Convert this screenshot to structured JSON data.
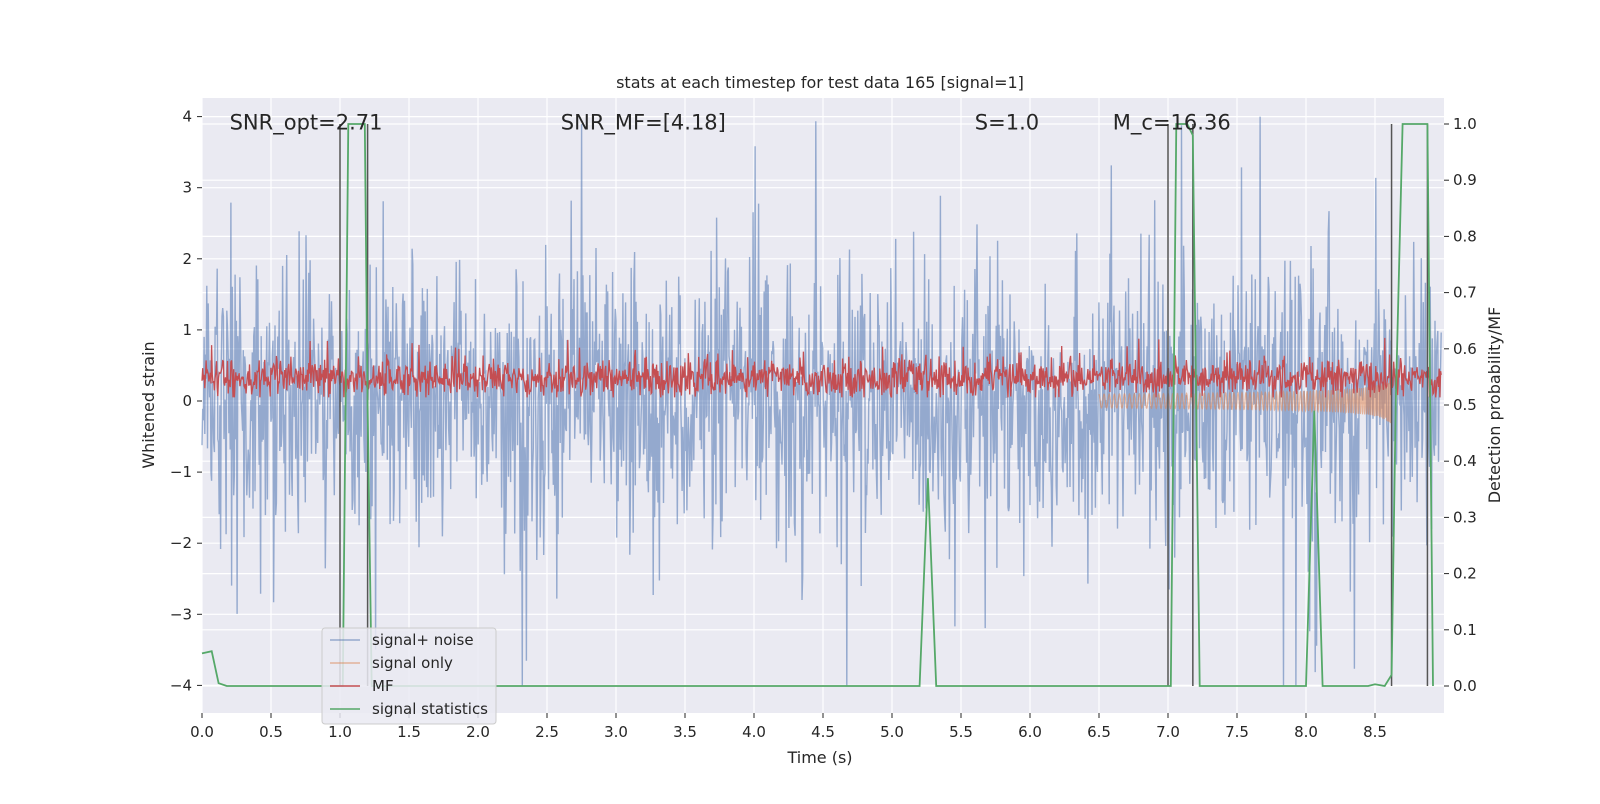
{
  "chart_data": {
    "type": "line",
    "title": "stats at each timestep for test data 165 [signal=1]",
    "xlabel": "Time (s)",
    "ylabel": "Whitened strain",
    "y2label": "Detection probability/MF",
    "xlim": [
      0.0,
      9.0
    ],
    "ylim": [
      -4.4,
      4.3
    ],
    "y2lim": [
      -0.05,
      1.035
    ],
    "xticks": [
      "0.0",
      "0.5",
      "1.0",
      "1.5",
      "2.0",
      "2.5",
      "3.0",
      "3.5",
      "4.0",
      "4.5",
      "5.0",
      "5.5",
      "6.0",
      "6.5",
      "7.0",
      "7.5",
      "8.0",
      "8.5"
    ],
    "yticks": [
      "4",
      "3",
      "2",
      "1",
      "0",
      "−1",
      "−2",
      "−3",
      "−4"
    ],
    "y2ticks": [
      "1.0",
      "0.9",
      "0.8",
      "0.7",
      "0.6",
      "0.5",
      "0.4",
      "0.3",
      "0.2",
      "0.1",
      "0.0"
    ],
    "grid": true,
    "legend_position": "lower-left",
    "annotations": [
      {
        "text": "SNR_opt=2.71",
        "x": 0.2,
        "y": 3.9
      },
      {
        "text": "SNR_MF=[4.18]",
        "x": 2.6,
        "y": 3.9
      },
      {
        "text": "S=1.0",
        "x": 5.6,
        "y": 3.9
      },
      {
        "text": "M_c=16.36",
        "x": 6.6,
        "y": 3.9
      }
    ],
    "series": [
      {
        "name": "signal+ noise",
        "color": "#4c72b0",
        "axis": "left",
        "style": "dense noise, amplitude ±1.7, spikes to ±4"
      },
      {
        "name": "signal only",
        "color": "#dd8452",
        "axis": "left",
        "style": "chirp near 6.5–8.6 s, amplitude up to 0.35"
      },
      {
        "name": "MF",
        "color": "#c44e52",
        "axis": "left",
        "style": "noise band around 0.3, range 0.05–0.9"
      },
      {
        "name": "signal statistics",
        "color": "#55a868",
        "axis": "right",
        "x": [
          0.0,
          0.07,
          0.12,
          0.18,
          0.99,
          1.02,
          1.06,
          1.1,
          1.18,
          1.2,
          1.23,
          5.2,
          5.26,
          5.32,
          6.99,
          7.02,
          7.06,
          7.14,
          7.18,
          7.23,
          8.0,
          8.06,
          8.12,
          8.45,
          8.5,
          8.57,
          8.62,
          8.65,
          8.7,
          8.88,
          8.92
        ],
        "y": [
          0.058,
          0.062,
          0.005,
          0.0,
          0.0,
          0.0,
          1.0,
          1.0,
          1.0,
          0.5,
          0.0,
          0.0,
          0.37,
          0.0,
          0.0,
          0.0,
          1.0,
          1.0,
          0.98,
          0.0,
          0.0,
          0.49,
          0.0,
          0.0,
          0.003,
          0.0,
          0.02,
          0.5,
          1.0,
          1.0,
          0.0
        ]
      }
    ],
    "vertical_lines": [
      {
        "x": 1.0,
        "color": "#555555"
      },
      {
        "x": 1.2,
        "color": "#555555"
      },
      {
        "x": 7.0,
        "color": "#555555"
      },
      {
        "x": 7.18,
        "color": "#555555"
      },
      {
        "x": 8.62,
        "color": "#555555"
      },
      {
        "x": 8.88,
        "color": "#555555"
      }
    ],
    "colors": {
      "plot_background": "#eaeaf2",
      "grid": "#ffffff"
    }
  }
}
